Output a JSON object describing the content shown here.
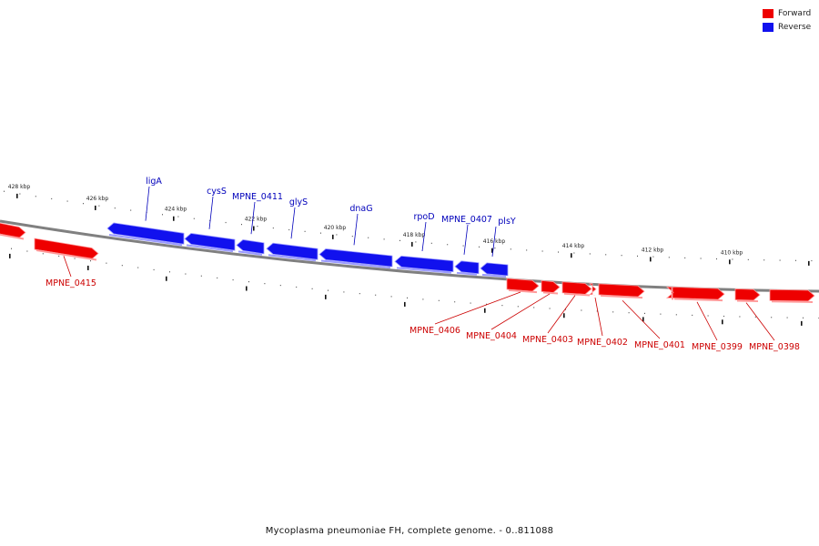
{
  "caption": "Mycoplasma pneumoniae FH, complete genome. - 0..811088",
  "legend": [
    {
      "label": "Forward",
      "color": "#ee0000"
    },
    {
      "label": "Reverse",
      "color": "#1111ee"
    }
  ],
  "colors": {
    "forward": "#ee0000",
    "forward_light": "#ff9a9a",
    "reverse": "#1111ee",
    "reverse_light": "#9a9aff",
    "backbone": "#808080",
    "forward_label": "#cc0000",
    "reverse_label": "#0000bb"
  },
  "kbp_ticks": [
    "428 kbp",
    "426 kbp",
    "424 kbp",
    "422 kbp",
    "420 kbp",
    "418 kbp",
    "416 kbp",
    "414 kbp",
    "412 kbp",
    "410 kbp"
  ],
  "reverse_genes": [
    {
      "label": "ligA"
    },
    {
      "label": "cysS"
    },
    {
      "label": "MPNE_0411"
    },
    {
      "label": "glyS"
    },
    {
      "label": "dnaG"
    },
    {
      "label": "rpoD"
    },
    {
      "label": "MPNE_0407"
    },
    {
      "label": "plsY"
    }
  ],
  "forward_genes": [
    {
      "label": ""
    },
    {
      "label": "MPNE_0415"
    },
    {
      "label": "MPNE_0406"
    },
    {
      "label": "MPNE_0404"
    },
    {
      "label": "MPNE_0403"
    },
    {
      "label": ""
    },
    {
      "label": "MPNE_0402"
    },
    {
      "label": "MPNE_0401"
    },
    {
      "label": ""
    },
    {
      "label": "MPNE_0399"
    },
    {
      "label": "MPNE_0398"
    }
  ]
}
